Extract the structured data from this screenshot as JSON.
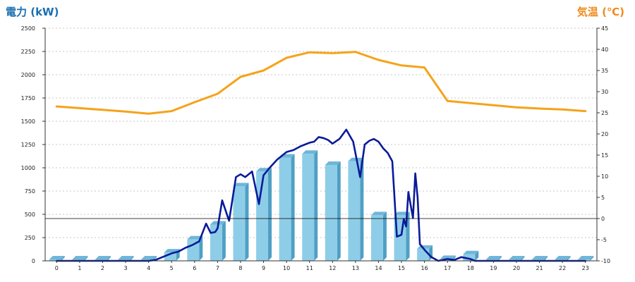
{
  "chart_data": {
    "type": "bar",
    "left_axis": {
      "label": "電力 (kW)",
      "color": "#1a6fb0",
      "ylim": [
        0,
        2500
      ],
      "ticks": [
        0,
        250,
        500,
        750,
        1000,
        1250,
        1500,
        1750,
        2000,
        2250,
        2500
      ]
    },
    "right_axis": {
      "label": "気温 (℃)",
      "color": "#f08a1c",
      "ylim": [
        -10,
        45
      ],
      "ticks": [
        -10,
        -5,
        0,
        5,
        10,
        15,
        20,
        25,
        30,
        35,
        40,
        45
      ]
    },
    "categories": [
      "0",
      "1",
      "2",
      "3",
      "4",
      "5",
      "6",
      "7",
      "8",
      "9",
      "10",
      "11",
      "12",
      "13",
      "14",
      "15",
      "16",
      "17",
      "18",
      "19",
      "20",
      "21",
      "22",
      "23"
    ],
    "grid": true,
    "bars": {
      "color": "#8ecde8",
      "side_color": "#4f9fc4",
      "top_color": "#6fb6d8",
      "values": [
        15,
        15,
        15,
        15,
        15,
        90,
        230,
        390,
        800,
        960,
        1110,
        1150,
        1030,
        1070,
        490,
        490,
        130,
        20,
        70,
        15,
        15,
        15,
        15,
        15
      ]
    },
    "series": [
      {
        "axis": "right",
        "color": "#f5a31a",
        "x": [
          0,
          1,
          2,
          3,
          4,
          5,
          6,
          7,
          8,
          9,
          10,
          11,
          12,
          13,
          14,
          15,
          16,
          17,
          18,
          19,
          20,
          21,
          22,
          23
        ],
        "values": [
          26.5,
          26.1,
          25.7,
          25.3,
          24.8,
          25.4,
          27.5,
          29.5,
          33.5,
          35.0,
          38.0,
          39.3,
          39.1,
          39.4,
          37.5,
          36.2,
          35.7,
          27.8,
          27.3,
          26.8,
          26.3,
          26.0,
          25.8,
          25.4
        ]
      },
      {
        "axis": "left",
        "color": "#0a1a99",
        "x": [
          0,
          0.5,
          1,
          1.5,
          2,
          2.5,
          3,
          3.5,
          4,
          4.3,
          4.6,
          5,
          5.3,
          5.6,
          5.9,
          6.2,
          6.5,
          6.7,
          6.9,
          7.0,
          7.2,
          7.5,
          7.8,
          8.0,
          8.2,
          8.5,
          8.8,
          9.0,
          9.3,
          9.6,
          10.0,
          10.3,
          10.6,
          10.8,
          11.0,
          11.2,
          11.4,
          11.6,
          11.8,
          12.0,
          12.3,
          12.6,
          12.9,
          13.2,
          13.4,
          13.6,
          13.8,
          14.0,
          14.2,
          14.4,
          14.6,
          14.8,
          15.0,
          15.1,
          15.2,
          15.3,
          15.5,
          15.6,
          15.7,
          15.8,
          16.0,
          16.3,
          16.6,
          17.0,
          17.3,
          17.6,
          18.0,
          18.2,
          18.5,
          19,
          20,
          21,
          22,
          23
        ],
        "values": [
          0,
          0,
          0,
          0,
          0,
          0,
          0,
          0,
          0,
          10,
          40,
          80,
          100,
          140,
          170,
          210,
          400,
          300,
          310,
          350,
          650,
          430,
          900,
          930,
          900,
          960,
          610,
          920,
          1010,
          1090,
          1170,
          1190,
          1230,
          1250,
          1270,
          1280,
          1330,
          1320,
          1300,
          1260,
          1310,
          1410,
          1280,
          900,
          1250,
          1290,
          1310,
          1280,
          1210,
          1160,
          1070,
          260,
          280,
          450,
          370,
          740,
          460,
          940,
          680,
          180,
          120,
          40,
          0,
          20,
          10,
          40,
          20,
          0,
          0,
          0,
          0,
          0,
          0,
          0
        ]
      }
    ]
  }
}
